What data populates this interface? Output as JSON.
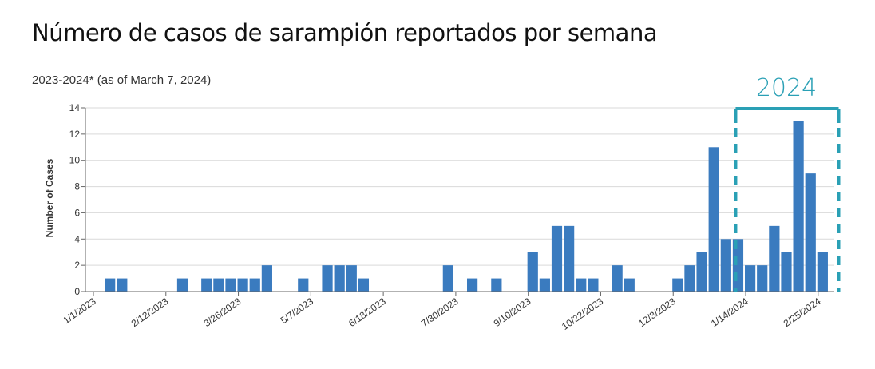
{
  "page": {
    "title": "Número de casos de sarampión reportados por semana",
    "subtitle": "2023-2024* (as of March 7, 2024)"
  },
  "highlight": {
    "label": "2024",
    "color": "#2aa0b5",
    "start_index": 53,
    "end_index": 61
  },
  "colors": {
    "bar": "#3a7bbf",
    "grid": "#d9d9d9",
    "axis": "#666666"
  },
  "chart_data": {
    "type": "bar",
    "title": "Número de casos de sarampión reportados por semana",
    "subtitle": "2023-2024* (as of March 7, 2024)",
    "xlabel": "",
    "ylabel": "Number of Cases",
    "ylim": [
      0,
      14
    ],
    "yticks": [
      0,
      2,
      4,
      6,
      8,
      10,
      12,
      14
    ],
    "grid": true,
    "x_tick_labels": [
      "1/1/2023",
      "2/12/2023",
      "3/26/2023",
      "5/7/2023",
      "6/18/2023",
      "7/30/2023",
      "9/10/2023",
      "10/22/2023",
      "12/3/2023",
      "1/14/2024",
      "2/25/2024"
    ],
    "x_tick_week_index": [
      0,
      6,
      12,
      18,
      24,
      30,
      36,
      42,
      48,
      54,
      60
    ],
    "series": [
      {
        "values": [
          0,
          1,
          1,
          0,
          0,
          0,
          0,
          1,
          0,
          1,
          1,
          1,
          1,
          1,
          2,
          0,
          0,
          1,
          0,
          2,
          2,
          2,
          1,
          0,
          0,
          0,
          0,
          0,
          0,
          2,
          0,
          1,
          0,
          1,
          0,
          0,
          3,
          1,
          5,
          5,
          1,
          1,
          0,
          2,
          1,
          0,
          0,
          0,
          1,
          2,
          3,
          11,
          4,
          4,
          2,
          2,
          5,
          3,
          13,
          9,
          3
        ]
      }
    ]
  }
}
